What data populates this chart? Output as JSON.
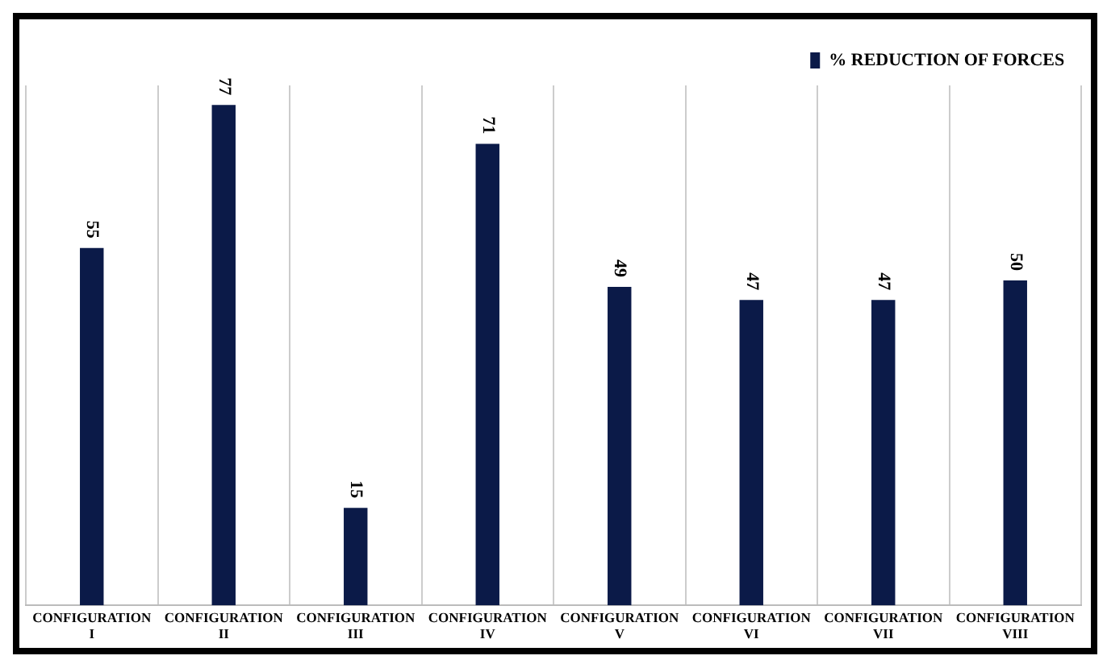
{
  "chart_data": {
    "type": "bar",
    "categories": [
      "CONFIGURATION I",
      "CONFIGURATION II",
      "CONFIGURATION III",
      "CONFIGURATION IV",
      "CONFIGURATION V",
      "CONFIGURATION VI",
      "CONFIGURATION VII",
      "CONFIGURATION VIII"
    ],
    "series": [
      {
        "name": "% REDUCTION OF FORCES",
        "color": "#0b1a48",
        "values": [
          55,
          77,
          15,
          71,
          49,
          47,
          47,
          50
        ]
      }
    ],
    "data_labels": true,
    "grid": "x",
    "legend": "top right",
    "tick_labels": "x"
  }
}
